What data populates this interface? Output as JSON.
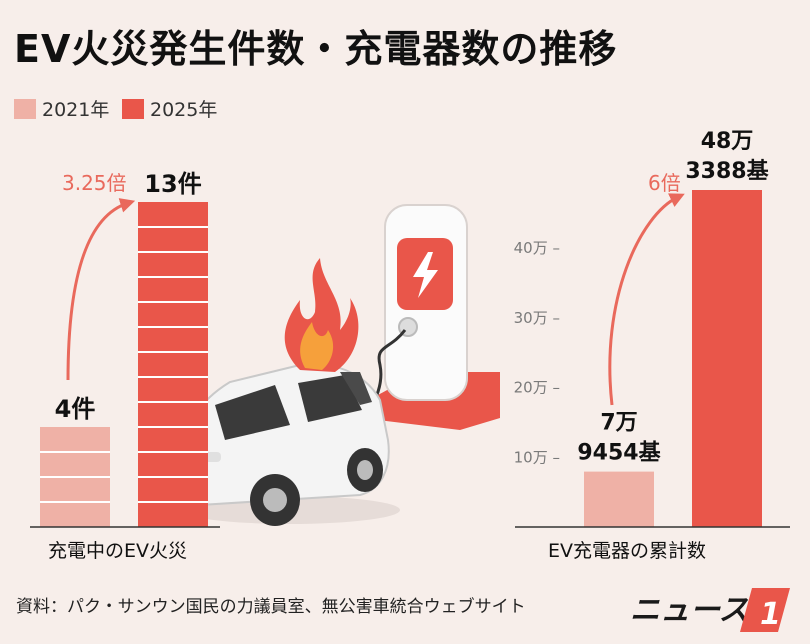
{
  "title": "EV火災発生件数・充電器数の推移",
  "legend": [
    {
      "label": "2021年",
      "color": "#efb1a6"
    },
    {
      "label": "2025年",
      "color": "#e9564a"
    }
  ],
  "colors": {
    "light": "#efb1a6",
    "dark": "#e9564a",
    "arrow": "#e9695c"
  },
  "chart_data": [
    {
      "type": "bar",
      "title": "充電中のEV火災",
      "categories": [
        "2021年",
        "2025年"
      ],
      "values": [
        4,
        13
      ],
      "data_labels": [
        "4件",
        "13件"
      ],
      "annotation": "3.25倍"
    },
    {
      "type": "bar",
      "title": "EV充電器の累計数",
      "categories": [
        "2021年",
        "2025年"
      ],
      "values": [
        79454,
        483388
      ],
      "data_labels": [
        [
          "7万",
          "9454基"
        ],
        [
          "48万",
          "3388基"
        ]
      ],
      "annotation": "6倍",
      "y_ticks": [
        100000,
        200000,
        300000,
        400000
      ],
      "y_tick_labels": [
        "10万 –",
        "20万 –",
        "30万 –",
        "40万 –"
      ],
      "ylim": [
        0,
        483388
      ]
    }
  ],
  "source": "資料：パク・サンウン国民の力議員室、無公害車統合ウェブサイト",
  "logo_text": "ニュース",
  "logo_number": "1"
}
